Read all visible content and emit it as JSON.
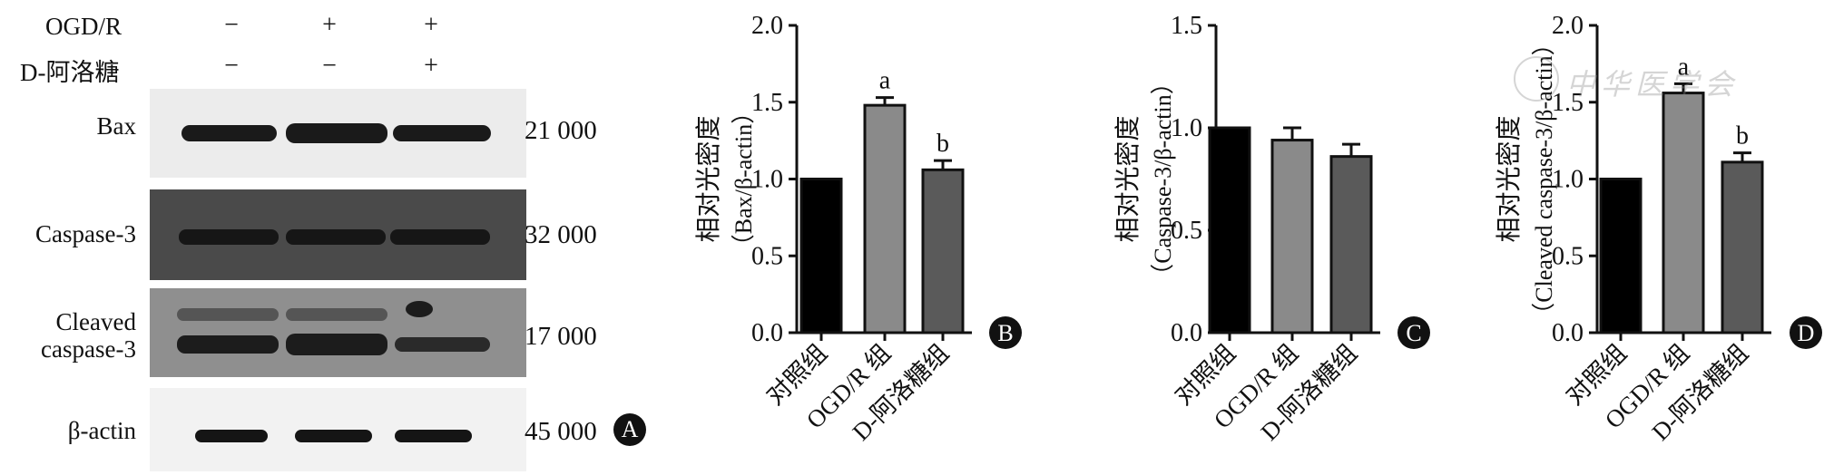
{
  "panel_a": {
    "badge": "A",
    "rows": [
      {
        "label": "OGD/R",
        "signs": [
          "−",
          "+",
          "+"
        ]
      },
      {
        "label": "D-阿洛糖",
        "signs": [
          "−",
          "−",
          "+"
        ]
      }
    ],
    "blots": [
      {
        "label": "Bax",
        "mw": "21 000",
        "bg": "#ececec",
        "band": "#1a1a1a"
      },
      {
        "label": "Caspase-3",
        "mw": "32 000",
        "bg": "#4a4a4a",
        "band": "#161616"
      },
      {
        "label": "Cleaved caspase-3",
        "label_line1": "Cleaved",
        "label_line2": "caspase-3",
        "mw": "17 000",
        "bg": "#8f8f8f",
        "band": "#1c1c1c"
      },
      {
        "label": "β-actin",
        "mw": "45 000",
        "bg": "#f2f2f2",
        "band": "#151515"
      }
    ]
  },
  "chart_data": [
    {
      "type": "bar",
      "badge": "B",
      "ylabel_line1": "相对光密度",
      "ylabel_line2": "（Bax/β-actin）",
      "categories": [
        "对照组",
        "OGD/R 组",
        "D-阿洛糖组"
      ],
      "values": [
        1.0,
        1.48,
        1.06
      ],
      "errors": [
        0,
        0.05,
        0.06
      ],
      "annotations": [
        "",
        "a",
        "b"
      ],
      "colors": [
        "#000000",
        "#8a8a8a",
        "#5a5a5a"
      ],
      "ylim": [
        0,
        2.0
      ],
      "yticks": [
        "0.0",
        "0.5",
        "1.0",
        "1.5",
        "2.0"
      ]
    },
    {
      "type": "bar",
      "badge": "C",
      "ylabel_line1": "相对光密度",
      "ylabel_line2": "（Caspase-3/β-actin）",
      "categories": [
        "对照组",
        "OGD/R 组",
        "D-阿洛糖组"
      ],
      "values": [
        1.0,
        0.94,
        0.86
      ],
      "errors": [
        0,
        0.06,
        0.06
      ],
      "annotations": [
        "",
        "",
        ""
      ],
      "colors": [
        "#000000",
        "#8a8a8a",
        "#5a5a5a"
      ],
      "ylim": [
        0,
        1.5
      ],
      "yticks": [
        "0.0",
        "0.5",
        "1.0",
        "1.5"
      ]
    },
    {
      "type": "bar",
      "badge": "D",
      "ylabel_line1": "相对光密度",
      "ylabel_line2": "（Cleaved caspase-3/β-actin）",
      "categories": [
        "对照组",
        "OGD/R 组",
        "D-阿洛糖组"
      ],
      "values": [
        1.0,
        1.56,
        1.11
      ],
      "errors": [
        0,
        0.06,
        0.06
      ],
      "annotations": [
        "",
        "a",
        "b"
      ],
      "colors": [
        "#000000",
        "#8a8a8a",
        "#5a5a5a"
      ],
      "ylim": [
        0,
        2.0
      ],
      "yticks": [
        "0.0",
        "0.5",
        "1.0",
        "1.5",
        "2.0"
      ]
    }
  ],
  "watermark": "中华医学会",
  "icons": {
    "watermark_logo": "seal-logo-icon"
  }
}
